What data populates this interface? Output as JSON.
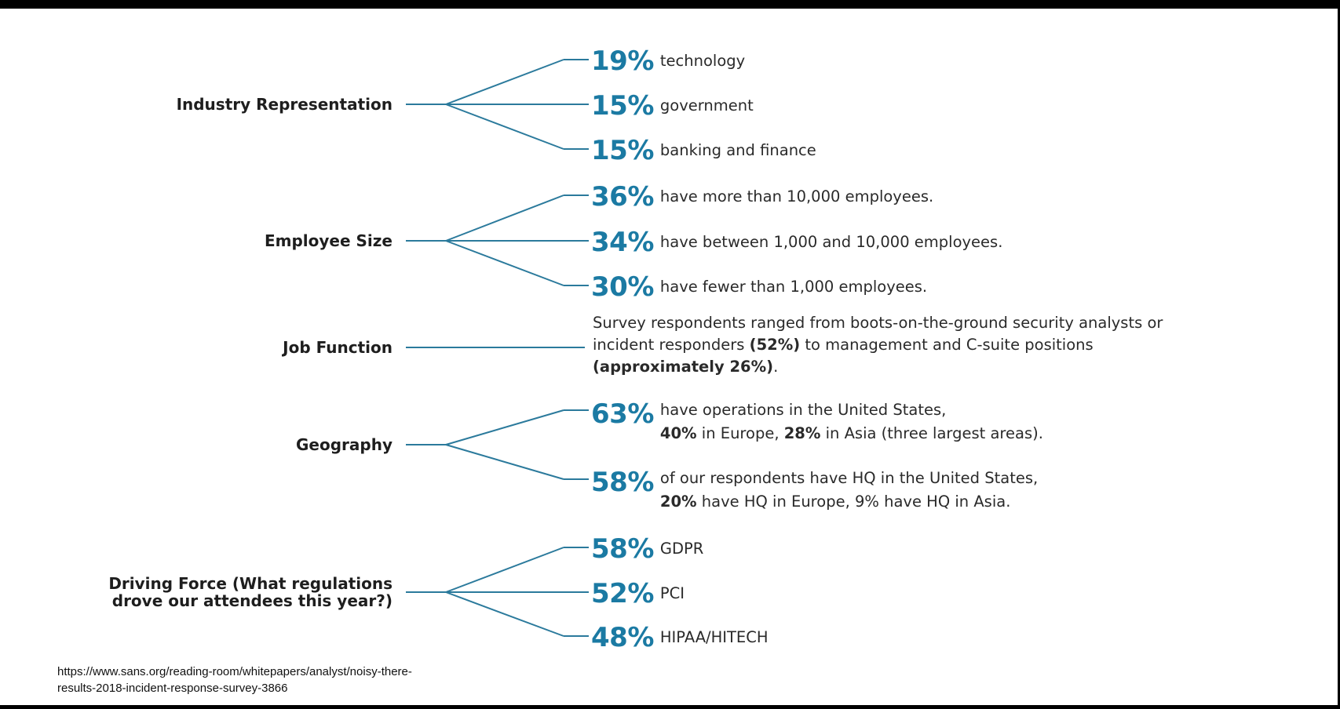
{
  "categories": [
    {
      "label": "Industry Representation",
      "items": [
        {
          "pct": "19%",
          "text": "technology"
        },
        {
          "pct": "15%",
          "text": "government"
        },
        {
          "pct": "15%",
          "text": "banking and finance"
        }
      ]
    },
    {
      "label": "Employee Size",
      "items": [
        {
          "pct": "36%",
          "text": "have more than 10,000 employees."
        },
        {
          "pct": "34%",
          "text": "have between 1,000 and 10,000 employees."
        },
        {
          "pct": "30%",
          "text": "have fewer than 1,000 employees."
        }
      ]
    },
    {
      "label": "Job Function",
      "paragraph": {
        "part1": "Survey respondents ranged from boots-on-the-ground security analysts or incident responders ",
        "bold1": "(52%)",
        "part2": " to management and C-suite positions ",
        "bold2": "(approximately 26%)",
        "part3": "."
      }
    },
    {
      "label": "Geography",
      "items": [
        {
          "pct": "63%",
          "line1": "have operations in the United States,",
          "b1": "40%",
          "t1": " in Europe, ",
          "b2": "28%",
          "t2": " in Asia (three largest areas)."
        },
        {
          "pct": "58%",
          "line1": "of our respondents have HQ in the United States,",
          "b1": "20%",
          "t1": " have HQ in Europe, 9% have HQ in Asia."
        }
      ]
    },
    {
      "label_line1": "Driving Force (What regulations",
      "label_line2": "drove our attendees this year?)",
      "items": [
        {
          "pct": "58%",
          "text": "GDPR"
        },
        {
          "pct": "52%",
          "text": "PCI"
        },
        {
          "pct": "48%",
          "text": "HIPAA/HITECH"
        }
      ]
    }
  ],
  "source": {
    "line1": "https://www.sans.org/reading-room/whitepapers/analyst/noisy-there-",
    "line2": "results-2018-incident-response-survey-3866"
  },
  "colors": {
    "accent": "#1b7aa3",
    "connector": "#2b7a9c",
    "background": "#ffffff",
    "frame": "#000000"
  }
}
